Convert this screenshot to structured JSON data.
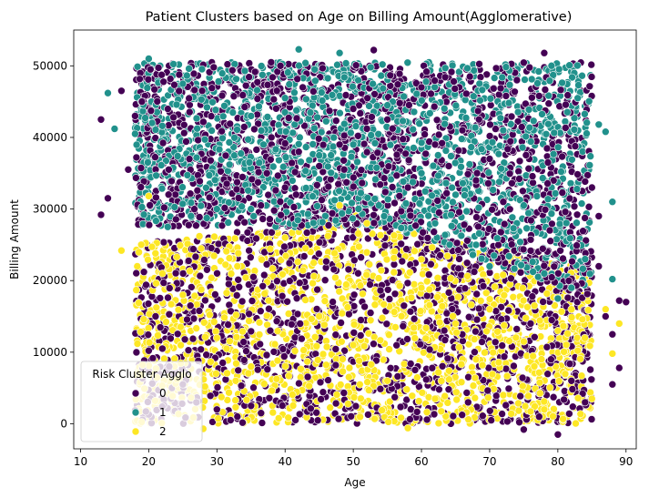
{
  "chart_data": {
    "type": "scatter",
    "title": "Patient Clusters based on Age on Billing Amount(Agglomerative)",
    "xlabel": "Age",
    "ylabel": "Billing Amount",
    "xlim": [
      9,
      91.5
    ],
    "ylim": [
      -3500,
      55000
    ],
    "xticks": [
      10,
      20,
      30,
      40,
      50,
      60,
      70,
      80,
      90
    ],
    "yticks": [
      0,
      10000,
      20000,
      30000,
      40000,
      50000
    ],
    "grid": false,
    "legend": {
      "title": "Risk Cluster Agglo",
      "placement": "lower-left",
      "entries": [
        "0",
        "1",
        "2"
      ]
    },
    "colors": {
      "0": "#440154",
      "1": "#21918c",
      "2": "#fde725"
    },
    "series": [
      {
        "name": "0",
        "regions": [
          {
            "x": [
              18,
              85
            ],
            "y": [
              0,
              50500
            ],
            "density": "high",
            "note": "dense throughout full range"
          }
        ],
        "points": [
          [
            13,
            42500
          ],
          [
            13,
            29200
          ],
          [
            14,
            31500
          ],
          [
            17,
            35500
          ],
          [
            16,
            46500
          ],
          [
            18,
            43000
          ],
          [
            19,
            45000
          ],
          [
            21,
            15000
          ],
          [
            22,
            10500
          ],
          [
            23,
            8000
          ],
          [
            25,
            5500
          ],
          [
            27,
            3000
          ],
          [
            30,
            2000
          ],
          [
            32,
            500
          ],
          [
            33,
            1000
          ],
          [
            35,
            2500
          ],
          [
            38,
            40000
          ],
          [
            40,
            33000
          ],
          [
            42,
            38000
          ],
          [
            45,
            36000
          ],
          [
            48,
            39000
          ],
          [
            50,
            44000
          ],
          [
            53,
            52200
          ],
          [
            55,
            42500
          ],
          [
            58,
            33000
          ],
          [
            60,
            47000
          ],
          [
            62,
            39000
          ],
          [
            64,
            36000
          ],
          [
            66,
            41000
          ],
          [
            68,
            34000
          ],
          [
            70,
            37000
          ],
          [
            72,
            31000
          ],
          [
            74,
            48000
          ],
          [
            75,
            -800
          ],
          [
            76,
            14000
          ],
          [
            78,
            51800
          ],
          [
            79,
            9000
          ],
          [
            80,
            -1500
          ],
          [
            82,
            6000
          ],
          [
            84,
            3000
          ],
          [
            85,
            33000
          ],
          [
            86,
            29000
          ],
          [
            86,
            22000
          ],
          [
            87,
            15000
          ],
          [
            88,
            12500
          ],
          [
            88,
            5500
          ],
          [
            89,
            17200
          ],
          [
            89,
            7800
          ],
          [
            90,
            17000
          ]
        ]
      },
      {
        "name": "1",
        "regions": [
          {
            "x": [
              18,
              85
            ],
            "y": [
              28000,
              50500
            ],
            "density": "high",
            "note": "dense in upper band, extends down to ~17000 for age 60-85"
          }
        ],
        "points": [
          [
            14,
            46200
          ],
          [
            15,
            41200
          ],
          [
            18,
            40500
          ],
          [
            20,
            51000
          ],
          [
            25,
            47500
          ],
          [
            30,
            30000
          ],
          [
            35,
            43000
          ],
          [
            40,
            45500
          ],
          [
            42,
            52300
          ],
          [
            45,
            37500
          ],
          [
            48,
            51800
          ],
          [
            50,
            39000
          ],
          [
            55,
            44500
          ],
          [
            60,
            35000
          ],
          [
            62,
            28000
          ],
          [
            65,
            32000
          ],
          [
            68,
            25000
          ],
          [
            70,
            22000
          ],
          [
            72,
            41000
          ],
          [
            75,
            30500
          ],
          [
            78,
            21000
          ],
          [
            80,
            17500
          ],
          [
            82,
            19000
          ],
          [
            84,
            23000
          ],
          [
            86,
            41800
          ],
          [
            87,
            40800
          ],
          [
            88,
            31000
          ],
          [
            88,
            20200
          ]
        ]
      },
      {
        "name": "2",
        "regions": [
          {
            "x": [
              18,
              85
            ],
            "y": [
              0,
              28000
            ],
            "density": "high",
            "note": "dense in lower band, upper boundary rising to ~30000 near age 48, ~22000 near age 70-85"
          }
        ],
        "points": [
          [
            16,
            24200
          ],
          [
            20,
            31800
          ],
          [
            22,
            21000
          ],
          [
            25,
            18000
          ],
          [
            28,
            -700
          ],
          [
            30,
            12000
          ],
          [
            33,
            22000
          ],
          [
            35,
            8000
          ],
          [
            40,
            26000
          ],
          [
            45,
            15000
          ],
          [
            48,
            30500
          ],
          [
            50,
            11000
          ],
          [
            52,
            28000
          ],
          [
            55,
            6000
          ],
          [
            58,
            -600
          ],
          [
            60,
            19000
          ],
          [
            62,
            3500
          ],
          [
            65,
            14000
          ],
          [
            68,
            9000
          ],
          [
            70,
            16000
          ],
          [
            72,
            4000
          ],
          [
            75,
            11500
          ],
          [
            78,
            2000
          ],
          [
            80,
            13000
          ],
          [
            82,
            16000
          ],
          [
            85,
            3500
          ],
          [
            87,
            16000
          ],
          [
            88,
            9800
          ],
          [
            89,
            14000
          ]
        ]
      }
    ]
  }
}
